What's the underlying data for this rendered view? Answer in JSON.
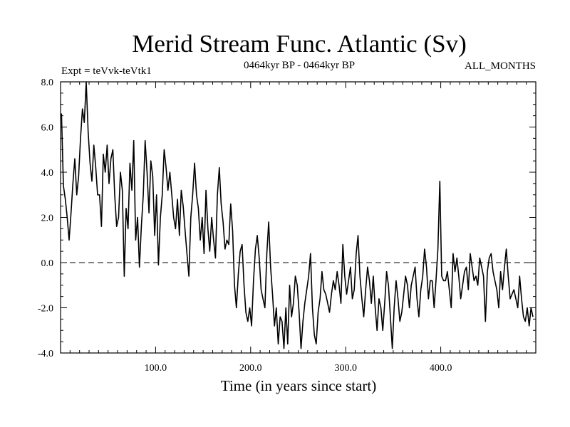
{
  "chart_data": {
    "type": "line",
    "title": "Merid Stream Func. Atlantic (Sv)",
    "subtitle_left": "Expt = teVvk-teVtk1",
    "subtitle_center": "0464kyr BP - 0464kyr BP",
    "subtitle_right": "ALL_MONTHS",
    "xlabel": "Time (in years since start)",
    "ylabel": "",
    "xlim": [
      0,
      500
    ],
    "ylim": [
      -4,
      8
    ],
    "x_ticks": [
      100,
      200,
      300,
      400
    ],
    "x_tick_labels": [
      "100.0",
      "200.0",
      "300.0",
      "400.0"
    ],
    "y_ticks": [
      -4,
      -2,
      0,
      2,
      4,
      6,
      8
    ],
    "y_tick_labels": [
      "-4.0",
      "-2.0",
      "0.0",
      "2.0",
      "4.0",
      "6.0",
      "8.0"
    ],
    "reference_line": {
      "y": 0,
      "style": "dashed"
    },
    "grid": false,
    "series": [
      {
        "name": "Merid Stream Func.",
        "color": "#000000",
        "x_start": 1,
        "x_step": 2,
        "values": [
          6.6,
          3.4,
          2.8,
          2.0,
          1.0,
          2.2,
          3.5,
          4.6,
          3.0,
          3.8,
          5.5,
          6.8,
          6.2,
          8.0,
          5.8,
          4.4,
          3.6,
          5.2,
          4.2,
          3.0,
          3.0,
          1.6,
          4.8,
          4.0,
          5.2,
          3.5,
          4.6,
          5.0,
          3.0,
          1.6,
          2.0,
          4.0,
          3.2,
          -0.6,
          2.4,
          1.5,
          4.4,
          3.2,
          5.4,
          1.0,
          2.0,
          -0.2,
          1.6,
          3.0,
          5.4,
          4.0,
          2.2,
          4.5,
          3.8,
          1.2,
          3.0,
          -0.1,
          2.0,
          3.0,
          5.0,
          4.2,
          3.2,
          4.0,
          3.0,
          2.0,
          1.5,
          2.8,
          1.2,
          3.2,
          2.5,
          1.4,
          0.4,
          -0.6,
          2.0,
          3.0,
          4.4,
          3.0,
          2.4,
          1.0,
          2.0,
          0.4,
          3.2,
          1.5,
          0.5,
          2.0,
          1.0,
          0.2,
          3.0,
          4.2,
          2.6,
          1.8,
          0.6,
          1.0,
          0.8,
          2.6,
          1.4,
          -1.0,
          -2.0,
          -0.5,
          0.5,
          0.8,
          -1.0,
          -2.2,
          -2.6,
          -2.0,
          -2.8,
          -0.8,
          0.6,
          1.2,
          0.2,
          -1.2,
          -1.6,
          -2.0,
          0.4,
          1.8,
          -0.2,
          -1.4,
          -2.8,
          -2.0,
          -3.6,
          -2.4,
          -2.6,
          -3.8,
          -2.0,
          -3.6,
          -1.0,
          -2.4,
          -1.8,
          -0.6,
          -1.0,
          -2.2,
          -3.8,
          -2.6,
          -1.8,
          -1.2,
          -0.6,
          0.4,
          -2.0,
          -3.2,
          -3.6,
          -2.2,
          -1.6,
          -0.4,
          -1.2,
          -1.4,
          -1.8,
          -2.2,
          -1.4,
          -0.8,
          -1.2,
          -0.4,
          -1.0,
          -1.8,
          0.8,
          -0.6,
          -1.4,
          -0.8,
          -0.2,
          -1.6,
          -1.2,
          0.4,
          1.2,
          -0.6,
          -1.6,
          -2.4,
          -1.2,
          -0.2,
          -0.8,
          -1.8,
          -0.6,
          -2.0,
          -3.0,
          -1.6,
          -2.0,
          -3.0,
          -1.8,
          -0.4,
          -1.0,
          -2.4,
          -3.8,
          -2.0,
          -0.8,
          -1.6,
          -2.6,
          -2.2,
          -1.4,
          -0.6,
          -1.0,
          -2.0,
          -1.0,
          -0.6,
          -0.2,
          -1.6,
          -2.4,
          -1.2,
          -0.6,
          0.6,
          -0.2,
          -1.6,
          -0.8,
          -0.8,
          -2.0,
          -0.8,
          0.6,
          3.6,
          -0.6,
          -0.8,
          -0.8,
          -0.4,
          -1.2,
          -2.0,
          0.4,
          -0.4,
          0.2,
          -0.6,
          -1.6,
          -1.0,
          -0.4,
          -0.2,
          -1.2,
          0.4,
          -0.2,
          -0.8,
          -0.6,
          -1.0,
          0.2,
          -0.2,
          -0.6,
          -2.6,
          -0.4,
          0.2,
          0.4,
          -0.4,
          -0.8,
          -1.2,
          -2.0,
          -0.4,
          -1.2,
          -0.2,
          0.6,
          -0.6,
          -1.6,
          -1.4,
          -1.2,
          -1.6,
          -2.0,
          -0.6,
          -1.6,
          -2.4,
          -2.6,
          -2.0,
          -2.8,
          -2.0,
          -2.4
        ]
      }
    ]
  }
}
